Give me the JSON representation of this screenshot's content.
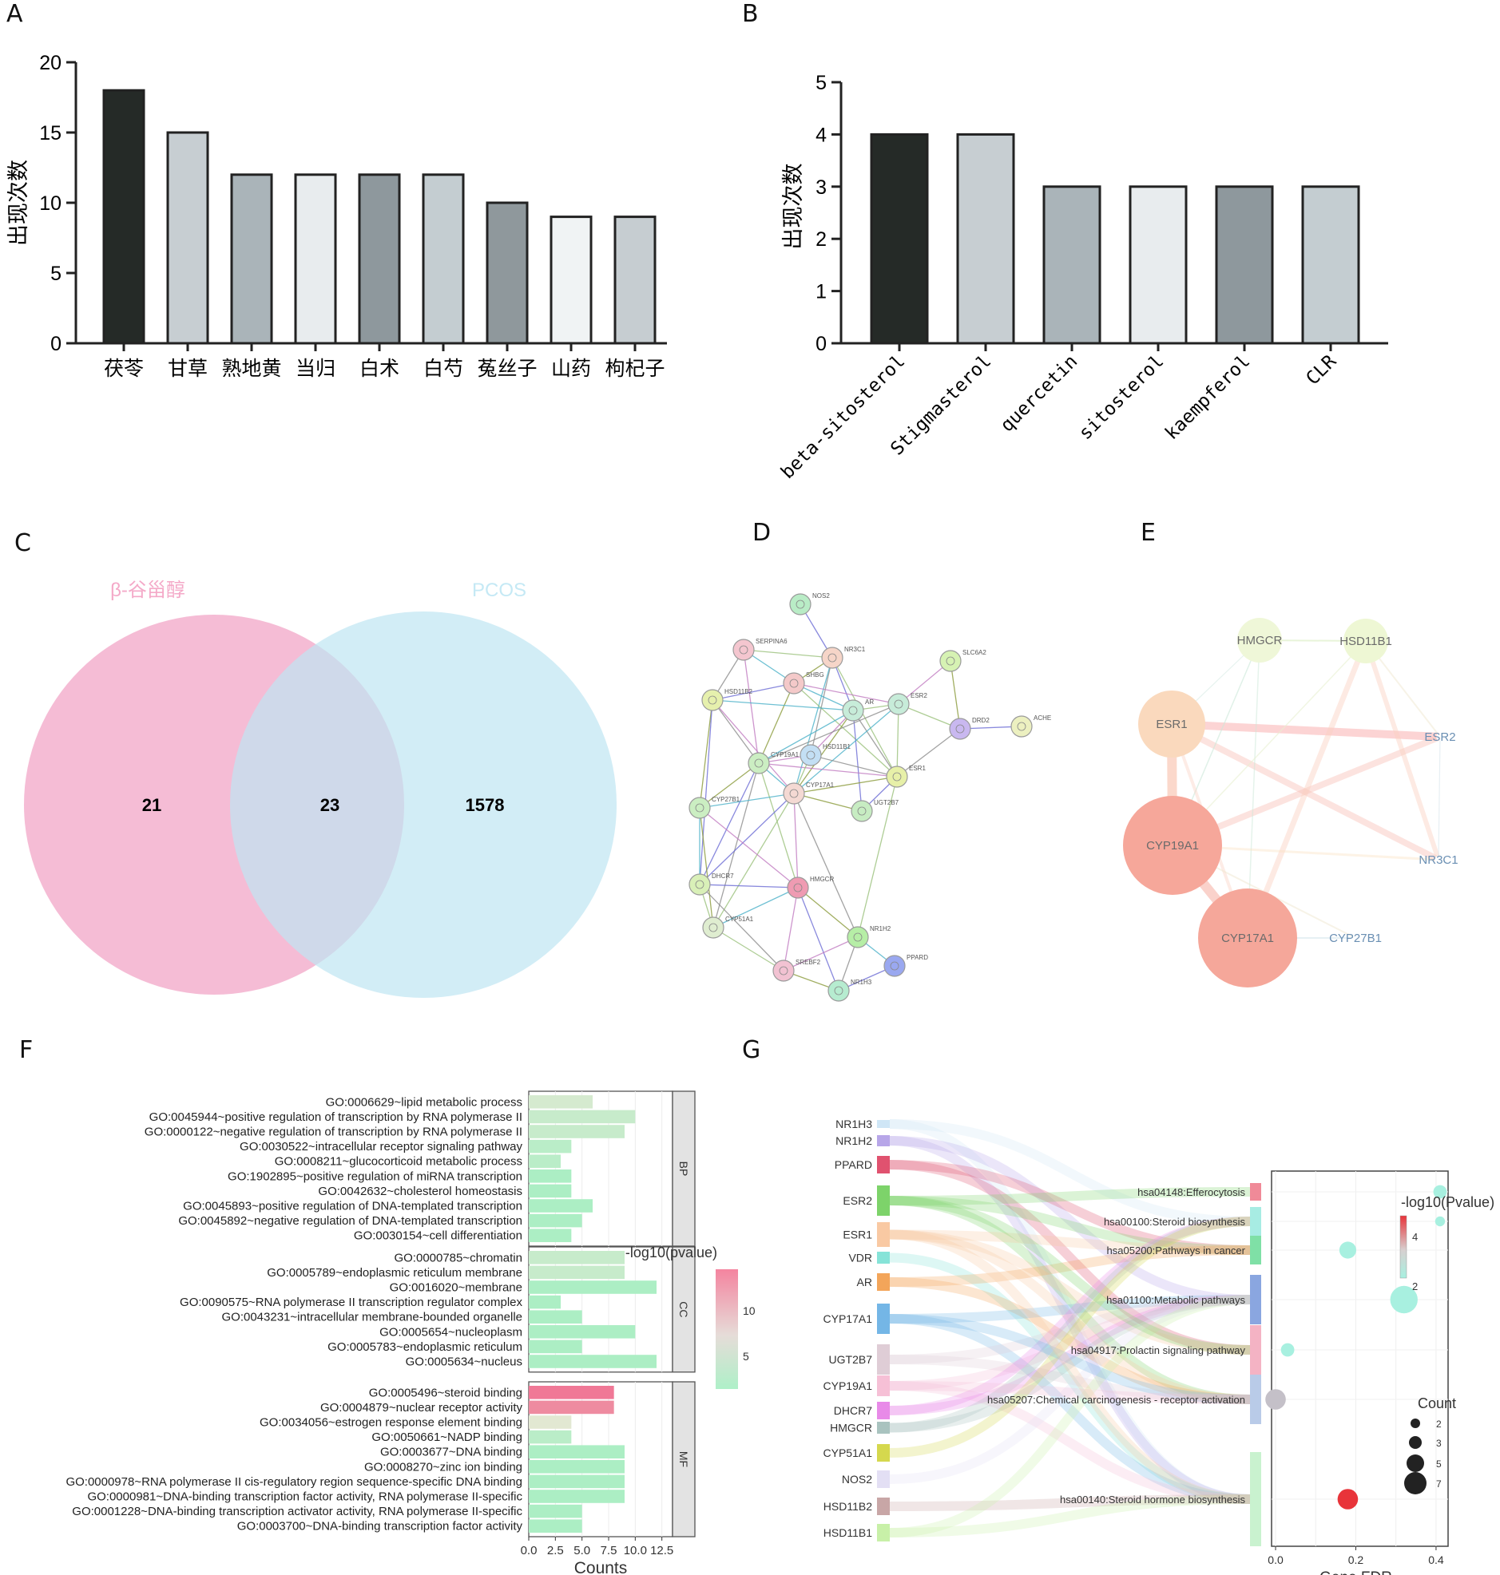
{
  "panels": {
    "a": "A",
    "b": "B",
    "c": "C",
    "d": "D",
    "e": "E",
    "f": "F",
    "g": "G"
  },
  "chart_data": [
    {
      "id": "A",
      "type": "bar",
      "ylabel": "出现次数",
      "ylim": [
        0,
        20
      ],
      "yticks": [
        0,
        5,
        10,
        15,
        20
      ],
      "categories": [
        "茯苓",
        "甘草",
        "熟地黄",
        "当归",
        "白术",
        "白芍",
        "菟丝子",
        "山药",
        "枸杞子"
      ],
      "values": [
        18,
        15,
        12,
        12,
        12,
        12,
        10,
        9,
        9
      ],
      "colors": [
        "#252a27",
        "#c7ced2",
        "#aab4b9",
        "#e8ecee",
        "#8e989d",
        "#c4cdd1",
        "#8f989c",
        "#f0f3f4",
        "#c6cdd1"
      ]
    },
    {
      "id": "B",
      "type": "bar",
      "ylabel": "出现次数",
      "ylim": [
        0,
        5
      ],
      "yticks": [
        0,
        1,
        2,
        3,
        4,
        5
      ],
      "categories": [
        "beta-sitosterol",
        "Stigmasterol",
        "quercetin",
        "sitosterol",
        "kaempferol",
        "CLR"
      ],
      "values": [
        4,
        4,
        3,
        3,
        3,
        3
      ],
      "colors": [
        "#252a27",
        "#c7ced2",
        "#aab4b9",
        "#e8ecee",
        "#8e989d",
        "#c4cdd1"
      ]
    },
    {
      "id": "C",
      "type": "venn",
      "sets": [
        {
          "name": "β-谷甾醇",
          "color": "#f2a6c7"
        },
        {
          "name": "PCOS",
          "color": "#bfe6f2"
        }
      ],
      "only_left": "21",
      "intersection": "23",
      "only_right": "1578"
    },
    {
      "id": "D",
      "type": "network",
      "nodes": [
        "NOS2",
        "SERPINA6",
        "NR3C1",
        "SLC6A2",
        "SHBG",
        "HSD11B2",
        "AR",
        "ESR2",
        "DRD2",
        "ACHE",
        "CYP19A1",
        "HSD11B1",
        "ESR1",
        "CYP17A1",
        "CYP27B1",
        "UGT2B7",
        "DHCR7",
        "HMGCR",
        "CYP51A1",
        "NR1H2",
        "PPARD",
        "SREBF2",
        "NR1H3"
      ]
    },
    {
      "id": "E",
      "type": "network",
      "nodes": [
        "HMGCR",
        "HSD11B1",
        "ESR1",
        "ESR2",
        "CYP19A1",
        "NR3C1",
        "CYP17A1",
        "CYP27B1"
      ]
    },
    {
      "id": "F",
      "type": "bar",
      "orientation": "horizontal",
      "xlabel": "Counts",
      "xlim": [
        0,
        13.5
      ],
      "xticks": [
        "0.0",
        "2.5",
        "5.0",
        "7.5",
        "10.0",
        "12.5"
      ],
      "legend_title": "-log10(pvalue)",
      "legend_ticks": [
        "10",
        "5"
      ],
      "groups": [
        {
          "name": "BP",
          "terms": [
            {
              "label": "GO:0006629~lipid metabolic process",
              "count": 6,
              "p": 6
            },
            {
              "label": "GO:0045944~positive regulation of transcription by RNA polymerase II",
              "count": 10,
              "p": 5
            },
            {
              "label": "GO:0000122~negative regulation of transcription by RNA polymerase II",
              "count": 9,
              "p": 5
            },
            {
              "label": "GO:0030522~intracellular receptor signaling pathway",
              "count": 4,
              "p": 4
            },
            {
              "label": "GO:0008211~glucocorticoid metabolic process",
              "count": 3,
              "p": 4
            },
            {
              "label": "GO:1902895~positive regulation of miRNA transcription",
              "count": 4,
              "p": 3
            },
            {
              "label": "GO:0042632~cholesterol homeostasis",
              "count": 4,
              "p": 3
            },
            {
              "label": "GO:0045893~positive regulation of DNA-templated transcription",
              "count": 6,
              "p": 3
            },
            {
              "label": "GO:0045892~negative regulation of DNA-templated transcription",
              "count": 5,
              "p": 3
            },
            {
              "label": "GO:0030154~cell differentiation",
              "count": 4,
              "p": 3
            }
          ]
        },
        {
          "name": "CC",
          "terms": [
            {
              "label": "GO:0000785~chromatin",
              "count": 9,
              "p": 5
            },
            {
              "label": "GO:0005789~endoplasmic reticulum membrane",
              "count": 9,
              "p": 5
            },
            {
              "label": "GO:0016020~membrane",
              "count": 12,
              "p": 3
            },
            {
              "label": "GO:0090575~RNA polymerase II transcription regulator complex",
              "count": 3,
              "p": 3
            },
            {
              "label": "GO:0043231~intracellular membrane-bounded organelle",
              "count": 5,
              "p": 3
            },
            {
              "label": "GO:0005654~nucleoplasm",
              "count": 10,
              "p": 3
            },
            {
              "label": "GO:0005783~endoplasmic reticulum",
              "count": 5,
              "p": 3
            },
            {
              "label": "GO:0005634~nucleus",
              "count": 12,
              "p": 3
            }
          ]
        },
        {
          "name": "MF",
          "terms": [
            {
              "label": "GO:0005496~steroid binding",
              "count": 8,
              "p": 13
            },
            {
              "label": "GO:0004879~nuclear receptor activity",
              "count": 8,
              "p": 12
            },
            {
              "label": "GO:0034056~estrogen response element binding",
              "count": 4,
              "p": 7
            },
            {
              "label": "GO:0050661~NADP binding",
              "count": 4,
              "p": 4
            },
            {
              "label": "GO:0003677~DNA binding",
              "count": 9,
              "p": 3
            },
            {
              "label": "GO:0008270~zinc ion binding",
              "count": 9,
              "p": 3
            },
            {
              "label": "GO:0000978~RNA polymerase II cis-regulatory region sequence-specific DNA binding",
              "count": 9,
              "p": 3
            },
            {
              "label": "GO:0000981~DNA-binding transcription factor activity, RNA polymerase II-specific",
              "count": 9,
              "p": 3
            },
            {
              "label": "GO:0001228~DNA-binding transcription activator activity, RNA polymerase II-specific",
              "count": 5,
              "p": 3
            },
            {
              "label": "GO:0003700~DNA-binding transcription factor activity",
              "count": 5,
              "p": 3
            }
          ]
        }
      ]
    },
    {
      "id": "G",
      "type": "scatter",
      "genes": [
        {
          "name": "NR1H3",
          "color": "#cfe6f6"
        },
        {
          "name": "NR1H2",
          "color": "#b7a6e8"
        },
        {
          "name": "PPARD",
          "color": "#e0526f"
        },
        {
          "name": "ESR2",
          "color": "#7dd36a"
        },
        {
          "name": "ESR1",
          "color": "#f9c9a3"
        },
        {
          "name": "VDR",
          "color": "#86e3d8"
        },
        {
          "name": "AR",
          "color": "#f3a55a"
        },
        {
          "name": "CYP17A1",
          "color": "#74b6e6"
        },
        {
          "name": "UGT2B7",
          "color": "#dfcdd6"
        },
        {
          "name": "CYP19A1",
          "color": "#f6c0d6"
        },
        {
          "name": "DHCR7",
          "color": "#e88ae8"
        },
        {
          "name": "HMGCR",
          "color": "#a9c3bf"
        },
        {
          "name": "CYP51A1",
          "color": "#d5d84e"
        },
        {
          "name": "NOS2",
          "color": "#e3dff4"
        },
        {
          "name": "HSD11B2",
          "color": "#c8a6a6"
        },
        {
          "name": "HSD11B1",
          "color": "#c8f0a8"
        }
      ],
      "pathways": [
        {
          "label": "hsa04148:Efferocytosis",
          "color": "#f08a98",
          "fdr": 0.41,
          "count": 2,
          "logp": 2.0
        },
        {
          "label": "hsa00100:Steroid biosynthesis",
          "color": "#a7ece3",
          "fdr": 0.41,
          "count": 1,
          "logp": 2.0
        },
        {
          "label": "hsa05200:Pathways in cancer",
          "color": "#7fe0a6",
          "fdr": 0.18,
          "count": 3,
          "logp": 2.2
        },
        {
          "label": "hsa01100:Metabolic pathways",
          "color": "#8aa6e0",
          "fdr": 0.32,
          "count": 6,
          "logp": 2.1
        },
        {
          "label": "hsa04917:Prolactin signaling pathway",
          "color": "#f4b3c4",
          "fdr": 0.03,
          "count": 2,
          "logp": 2.3
        },
        {
          "label": "hsa05207:Chemical carcinogenesis - receptor activation",
          "color": "#b9cbe8",
          "fdr": 0.0,
          "count": 4,
          "logp": 3.2
        },
        {
          "label": "hsa00140:Steroid hormone biosynthesis",
          "color": "#c9f2cf",
          "fdr": 0.18,
          "count": 4,
          "logp": 4.8
        }
      ],
      "xlabel": "Gene.FDR",
      "xticks": [
        "0.0",
        "0.2",
        "0.4"
      ],
      "xlim": [
        -0.01,
        0.43
      ],
      "legend_color_title": "-log10(Pvalue)",
      "legend_color_ticks": [
        "4",
        "2"
      ],
      "legend_size_title": "Count",
      "legend_size_ticks": [
        "2",
        "3",
        "5",
        "7"
      ]
    }
  ]
}
